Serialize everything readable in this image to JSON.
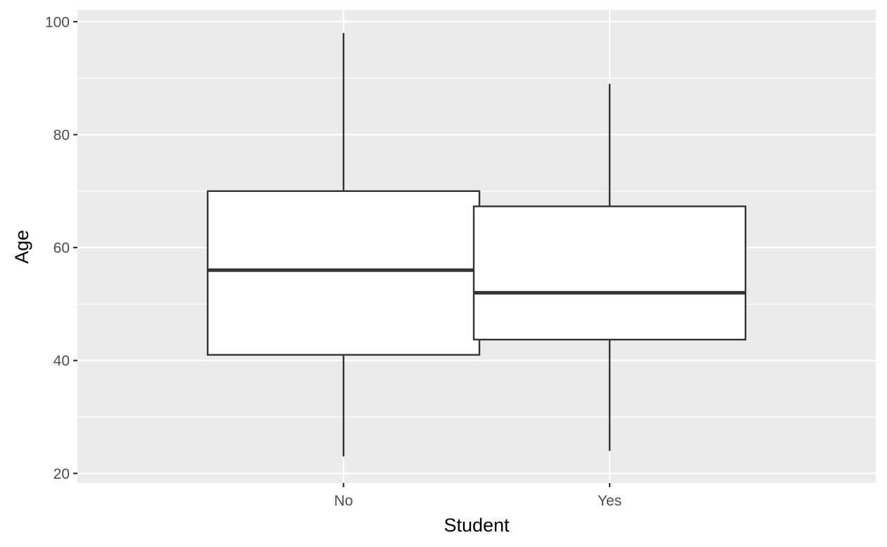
{
  "chart_data": {
    "type": "boxplot",
    "xlabel": "Student",
    "ylabel": "Age",
    "categories": [
      "No",
      "Yes"
    ],
    "boxes": [
      {
        "category": "No",
        "min": 23,
        "q1": 41,
        "median": 56,
        "q3": 70,
        "max": 98
      },
      {
        "category": "Yes",
        "min": 24,
        "q1": 43.7,
        "median": 52,
        "q3": 67.3,
        "max": 89
      }
    ],
    "ylim": [
      18.3,
      102.1
    ],
    "yticks": [
      20,
      40,
      60,
      80,
      100
    ],
    "grid": true,
    "legend": "none",
    "colors": {
      "panel_background": "#ebebeb",
      "grid": "#ffffff",
      "box_fill": "#ffffff",
      "box_stroke": "#333333",
      "tick_color": "#333333"
    }
  }
}
